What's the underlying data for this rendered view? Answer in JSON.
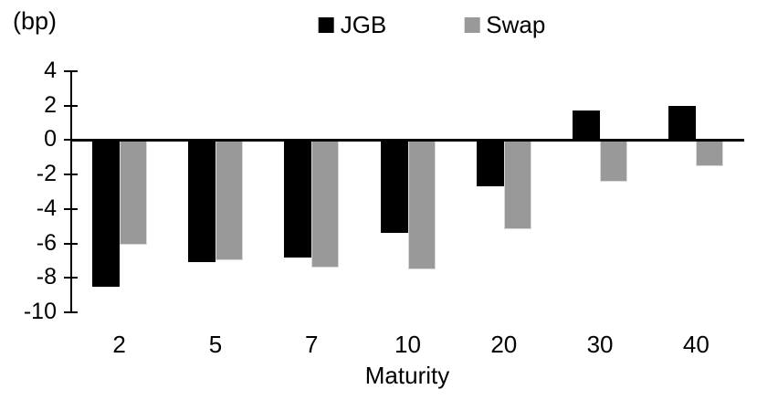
{
  "chart_data": {
    "type": "bar",
    "title": "",
    "xlabel": "Maturity",
    "ylabel": "(bp)",
    "categories": [
      "2",
      "5",
      "7",
      "10",
      "20",
      "30",
      "40"
    ],
    "series": [
      {
        "name": "JGB",
        "color": "#000000",
        "values": [
          -8.5,
          -7.1,
          -6.8,
          -5.4,
          -2.7,
          1.7,
          2.0
        ]
      },
      {
        "name": "Swap",
        "color": "#999999",
        "values": [
          -6.1,
          -7.0,
          -7.4,
          -7.5,
          -5.2,
          -2.4,
          -1.5
        ]
      }
    ],
    "ylim": [
      -10,
      4
    ],
    "yticks": [
      4,
      2,
      0,
      -2,
      -4,
      -6,
      -8,
      -10
    ],
    "grid": false,
    "legend_position": "top-center",
    "zero_line": true
  }
}
